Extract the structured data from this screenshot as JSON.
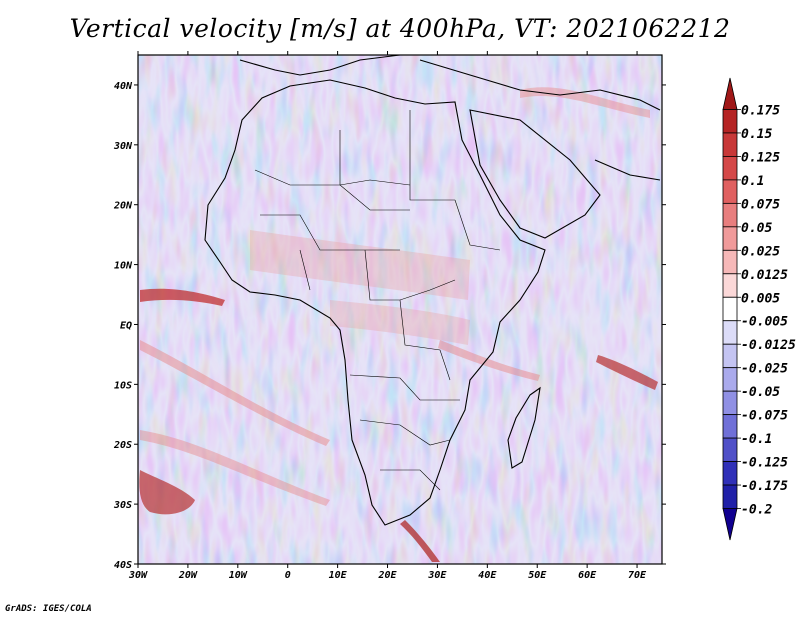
{
  "title": "Vertical velocity [m/s] at 400hPa, VT: 2021062212",
  "credit": "GrADS: IGES/COLA",
  "map": {
    "lon_ticks": [
      "30W",
      "20W",
      "10W",
      "0",
      "10E",
      "20E",
      "30E",
      "40E",
      "50E",
      "60E",
      "70E"
    ],
    "lat_ticks": [
      "40N",
      "30N",
      "20N",
      "10N",
      "EQ",
      "10S",
      "20S",
      "30S",
      "40S"
    ],
    "lon_range": [
      -30,
      75
    ],
    "lat_range": [
      -40,
      45
    ]
  },
  "colorbar": {
    "labels": [
      "0.175",
      "0.15",
      "0.125",
      "0.1",
      "0.075",
      "0.05",
      "0.025",
      "0.0125",
      "0.005",
      "-0.005",
      "-0.0125",
      "-0.025",
      "-0.05",
      "-0.075",
      "-0.1",
      "-0.125",
      "-0.175",
      "-0.2"
    ],
    "colors": [
      "#a01818",
      "#b52424",
      "#c83838",
      "#d44848",
      "#e06060",
      "#e87e7e",
      "#f09a9a",
      "#f6b8b8",
      "#fbd8d8",
      "#ffffff",
      "#dcdcf8",
      "#c4c4f2",
      "#aaaaec",
      "#9090e4",
      "#7070d8",
      "#5050c8",
      "#3030b8",
      "#2020a8",
      "#100090"
    ]
  }
}
